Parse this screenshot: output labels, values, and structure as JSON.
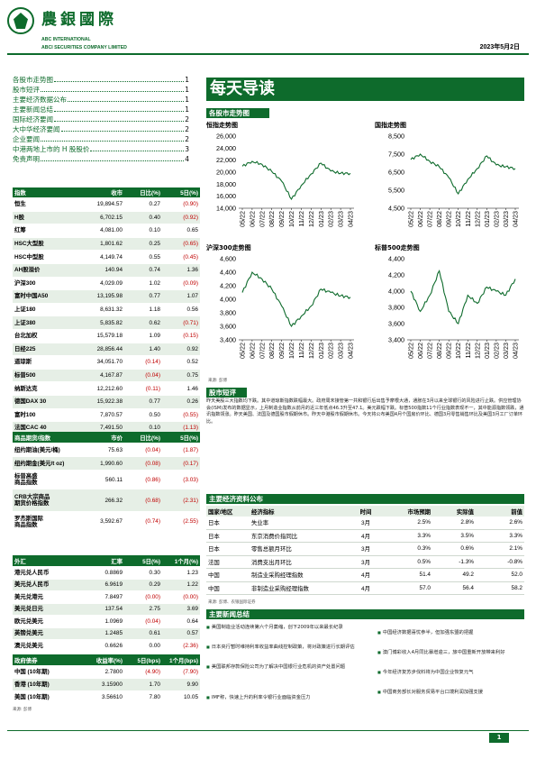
{
  "header": {
    "brand_cn": "農銀國際",
    "brand_en_line1": "ABC INTERNATIONAL",
    "brand_en_line2": "ABCI SECURITIES COMPANY LIMITED",
    "date": "2023年5月2日"
  },
  "toc": [
    {
      "label": "各股市走势图",
      "page": "1"
    },
    {
      "label": "股市短评",
      "page": "1"
    },
    {
      "label": "主要经济数据公布",
      "page": "1"
    },
    {
      "label": "主要新闻总结",
      "page": "1"
    },
    {
      "label": "国际经济要闻",
      "page": "2"
    },
    {
      "label": "大中华经济要闻",
      "page": "2"
    },
    {
      "label": "企业要闻",
      "page": "2"
    },
    {
      "label": "中港两地上市的 H 股股价",
      "page": "3"
    },
    {
      "label": "免责声明",
      "page": "4"
    }
  ],
  "index_table": {
    "headers": [
      "指数",
      "收市",
      "日比(%)",
      "5日(%)"
    ],
    "rows": [
      [
        "恒生",
        "19,894.57",
        "0.27",
        "(0.90)"
      ],
      [
        "H股",
        "6,702.15",
        "0.40",
        "(0.92)"
      ],
      [
        "红筹",
        "4,081.00",
        "0.10",
        "0.65"
      ],
      [
        "HSC大型股",
        "1,801.62",
        "0.25",
        "(0.65)"
      ],
      [
        "HSC中型股",
        "4,149.74",
        "0.55",
        "(0.45)"
      ],
      [
        "AH股溢价",
        "140.94",
        "0.74",
        "1.36"
      ],
      [
        "沪深300",
        "4,029.09",
        "1.02",
        "(0.09)"
      ],
      [
        "富时中国A50",
        "13,195.98",
        "0.77",
        "1.07"
      ],
      [
        "上证180",
        "8,631.32",
        "1.18",
        "0.56"
      ],
      [
        "上证380",
        "5,835.82",
        "0.62",
        "(0.71)"
      ],
      [
        "台北加权",
        "15,579.18",
        "1.09",
        "(0.15)"
      ],
      [
        "日经225",
        "28,856.44",
        "1.40",
        "0.92"
      ],
      [
        "道琼斯",
        "34,051.70",
        "(0.14)",
        "0.52"
      ],
      [
        "标普500",
        "4,167.87",
        "(0.04)",
        "0.75"
      ],
      [
        "纳斯达克",
        "12,212.60",
        "(0.11)",
        "1.46"
      ],
      [
        "德国DAX 30",
        "15,922.38",
        "0.77",
        "0.26"
      ],
      [
        "富时100",
        "7,870.57",
        "0.50",
        "(0.55)"
      ],
      [
        "法国CAC 40",
        "7,491.50",
        "0.10",
        "(1.13)"
      ]
    ]
  },
  "commodity_table": {
    "headers": [
      "商品期货/指数",
      "市价",
      "日比(%)",
      "5日(%)"
    ],
    "rows": [
      [
        "纽约期油(美元/桶)",
        "75.63",
        "(0.04)",
        "(1.87)"
      ],
      [
        "纽约期金(美元/t oz)",
        "1,990.60",
        "(0.08)",
        "(0.17)"
      ],
      [
        "标普高盛\n商品指数",
        "560.11",
        "(0.86)",
        "(3.03)"
      ],
      [
        "CRB大宗商品\n期货价格指数",
        "266.32",
        "(0.68)",
        "(2.31)"
      ],
      [
        "罗杰斯国际\n商品指数",
        "3,592.67",
        "(0.74)",
        "(2.55)"
      ]
    ]
  },
  "fx_table": {
    "headers": [
      "外汇",
      "汇率",
      "5日(%)",
      "1个月(%)"
    ],
    "rows": [
      [
        "港元兑人民币",
        "0.8869",
        "0.30",
        "1.23"
      ],
      [
        "美元兑人民币",
        "6.9619",
        "0.29",
        "1.22"
      ],
      [
        "美元兑港元",
        "7.8497",
        "(0.00)",
        "(0.00)"
      ],
      [
        "美元兑日元",
        "137.54",
        "2.75",
        "3.69"
      ],
      [
        "欧元兑美元",
        "1.0969",
        "(0.04)",
        "0.64"
      ],
      [
        "英镑兑美元",
        "1.2485",
        "0.61",
        "0.57"
      ],
      [
        "澳元兑美元",
        "0.6626",
        "0.00",
        "(2.36)"
      ]
    ]
  },
  "bond_table": {
    "headers": [
      "政府债券",
      "收益率(%)",
      "5日(bps)",
      "1个月(bps)"
    ],
    "rows": [
      [
        "中国 (10年期)",
        "2.7800",
        "(4.90)",
        "(7.90)"
      ],
      [
        "香港 (10年期)",
        "3.15900",
        "1.70",
        "9.90"
      ],
      [
        "美国 (10年期)",
        "3.56610",
        "7.80",
        "10.05"
      ]
    ],
    "source": "来源: 彭博"
  },
  "right": {
    "banner": "每天导读",
    "charts_section": "各股市走势图",
    "chart_source": "来源: 彭博",
    "commentary_title": "股市短评",
    "commentary": "昨天美股三大指数均下跌。其中道琼斯指数跌幅最大。政府周末接管第一共和银行后出售予摩根大通，通胀在3月以来全球银行的风险进行止跌。供应管理协会(ISM)发布的数据显示，上月制造业指数从前月的近三年低点46.3升至47.1。美元跌幅下跌。标普500指数11个行业指数表现不一，其中能源指数领跌，通讯指数领涨。昨天美国、法国及德国股市假期休市。昨天中港股市假期休市。今天将公布美国4月个国房价环比、德国3月零售销售环比及美国3月工厂订单环比。",
    "econ_title": "主要经济资料公布",
    "econ_headers": [
      "国家/地区",
      "经济指标",
      "时间",
      "市场预期",
      "实际值",
      "前值"
    ],
    "econ_rows": [
      [
        "日本",
        "失业率",
        "3月",
        "2.5%",
        "2.8%",
        "2.6%"
      ],
      [
        "日本",
        "东京消费价指同比",
        "4月",
        "3.3%",
        "3.5%",
        "3.3%"
      ],
      [
        "日本",
        "零售总额月环比",
        "3月",
        "0.3%",
        "0.6%",
        "2.1%"
      ],
      [
        "法国",
        "消费支出月环比",
        "3月",
        "0.5%",
        "-1.3%",
        "-0.8%"
      ],
      [
        "中国",
        "制造业采购经理指数",
        "4月",
        "51.4",
        "49.2",
        "52.0"
      ],
      [
        "中国",
        "非制造业采购经理指数",
        "4月",
        "57.0",
        "56.4",
        "58.2"
      ]
    ],
    "econ_source": "来源: 彭博、农银国际证券",
    "news_title": "主要新闻总结",
    "news_left": [
      "美国制造业活动连续第六个月萎缩，创下2009年以来最长纪录",
      "日本央行暂时维持利率收益率曲线控制政策，将对政策进行长期评估",
      "美国联邦存款保险公司为了解决中国银行业危机的资产处置问题",
      "IMF称，快速上升的利率令银行业面临资金压力"
    ],
    "news_right": [
      "中国经济数据喜忧参半，但加强东盟的把握",
      "澳门博彩收入4月同比暴增逾三，旅中国重新开放带来利好",
      "今年经济复苏步伐料将为中国企业恢复元气",
      "中国商务部长对服务贸易平台口境利润加强支援"
    ]
  },
  "chart_data": [
    {
      "type": "line",
      "title": "恒指走势图",
      "x": [
        "05/22",
        "06/22",
        "07/22",
        "08/22",
        "09/22",
        "10/22",
        "11/22",
        "12/22",
        "01/23",
        "02/23",
        "03/23",
        "04/23"
      ],
      "values": [
        21000,
        21800,
        21300,
        20100,
        18500,
        15500,
        17800,
        19700,
        21500,
        20200,
        19800,
        19800
      ],
      "ylim": [
        14000,
        26000
      ],
      "yticks": [
        "14,000",
        "16,000",
        "18,000",
        "20,000",
        "22,000",
        "24,000",
        "26,000"
      ]
    },
    {
      "type": "line",
      "title": "国指走势图",
      "x": [
        "05/22",
        "06/22",
        "07/22",
        "08/22",
        "09/22",
        "10/22",
        "11/22",
        "12/22",
        "01/23",
        "02/23",
        "03/23",
        "04/23"
      ],
      "values": [
        7200,
        7500,
        7100,
        6800,
        6200,
        5300,
        6100,
        6700,
        7400,
        6900,
        6800,
        6700
      ],
      "ylim": [
        4500,
        8500
      ],
      "yticks": [
        "4,500",
        "5,500",
        "6,500",
        "7,500",
        "8,500"
      ]
    },
    {
      "type": "line",
      "title": "沪深300走势图",
      "x": [
        "05/22",
        "06/22",
        "07/22",
        "08/22",
        "09/22",
        "10/22",
        "11/22",
        "12/22",
        "01/23",
        "02/23",
        "03/23",
        "04/23"
      ],
      "values": [
        4100,
        4400,
        4300,
        4150,
        3900,
        3600,
        3750,
        3900,
        4150,
        4100,
        4050,
        4030
      ],
      "ylim": [
        3400,
        4600
      ],
      "yticks": [
        "3,400",
        "3,600",
        "3,800",
        "4,000",
        "4,200",
        "4,400",
        "4,600"
      ]
    },
    {
      "type": "line",
      "title": "标普500走势图",
      "x": [
        "05/22",
        "06/22",
        "07/22",
        "08/22",
        "09/22",
        "10/22",
        "11/22",
        "12/22",
        "01/23",
        "02/23",
        "03/23",
        "04/23"
      ],
      "values": [
        4000,
        3750,
        3950,
        4250,
        3750,
        3600,
        3950,
        3850,
        4050,
        4000,
        3950,
        4150
      ],
      "ylim": [
        3400,
        4400
      ],
      "yticks": [
        "3,400",
        "3,600",
        "3,800",
        "4,000",
        "4,200",
        "4,400"
      ]
    }
  ],
  "footer": {
    "page": "1"
  }
}
